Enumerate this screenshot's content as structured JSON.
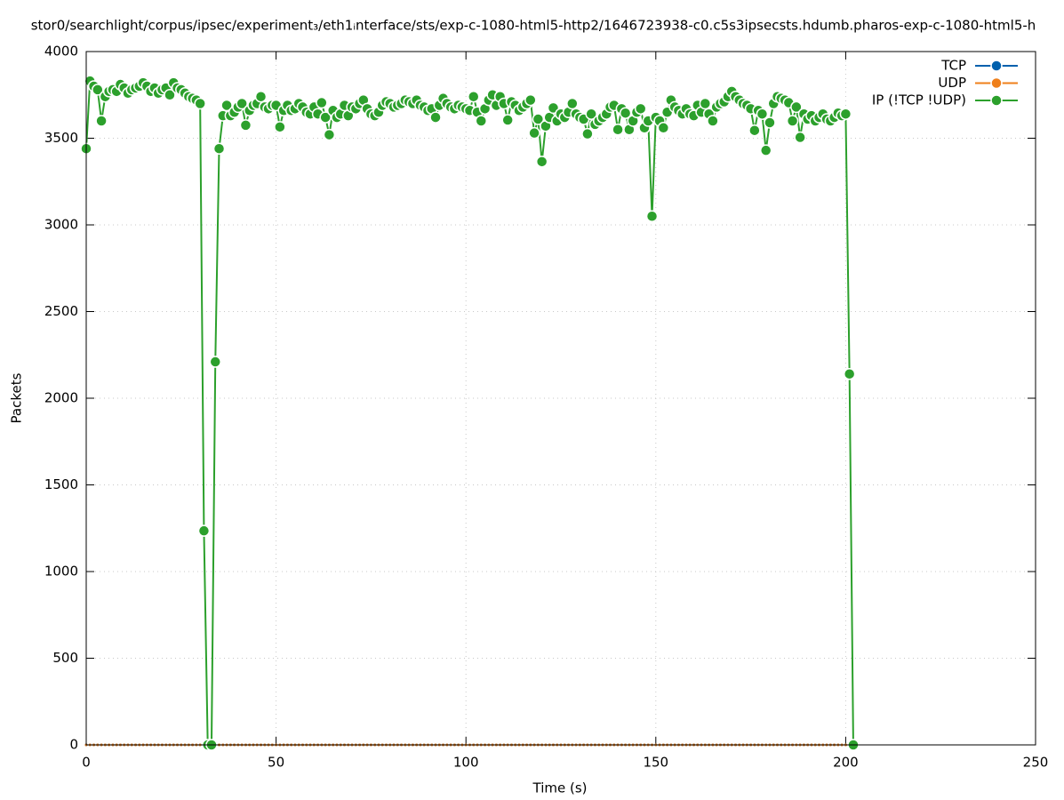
{
  "chart_data": {
    "type": "line",
    "title": "stor0/searchlight/corpus/ipsec/experiment₃/eth1ᵢnterface/sts/exp-c-1080-html5-http2/1646723938-c0.c5s3ipsecsts.hdumb.pharos-exp-c-1080-html5-h",
    "x_label": "Time (s)",
    "y_label": "Packets",
    "xlim": [
      0,
      250
    ],
    "xticks": [
      0,
      50,
      100,
      150,
      200,
      250
    ],
    "ylim": [
      0,
      4000
    ],
    "yticks": [
      0,
      500,
      1000,
      1500,
      2000,
      2500,
      3000,
      3500,
      4000
    ],
    "grid": true,
    "legend": "top-right",
    "x": [
      0,
      1,
      2,
      3,
      4,
      5,
      6,
      7,
      8,
      9,
      10,
      11,
      12,
      13,
      14,
      15,
      16,
      17,
      18,
      19,
      20,
      21,
      22,
      23,
      24,
      25,
      26,
      27,
      28,
      29,
      30,
      31,
      32,
      33,
      34,
      35,
      36,
      37,
      38,
      39,
      40,
      41,
      42,
      43,
      44,
      45,
      46,
      47,
      48,
      49,
      50,
      51,
      52,
      53,
      54,
      55,
      56,
      57,
      58,
      59,
      60,
      61,
      62,
      63,
      64,
      65,
      66,
      67,
      68,
      69,
      70,
      71,
      72,
      73,
      74,
      75,
      76,
      77,
      78,
      79,
      80,
      81,
      82,
      83,
      84,
      85,
      86,
      87,
      88,
      89,
      90,
      91,
      92,
      93,
      94,
      95,
      96,
      97,
      98,
      99,
      100,
      101,
      102,
      103,
      104,
      105,
      106,
      107,
      108,
      109,
      110,
      111,
      112,
      113,
      114,
      115,
      116,
      117,
      118,
      119,
      120,
      121,
      122,
      123,
      124,
      125,
      126,
      127,
      128,
      129,
      130,
      131,
      132,
      133,
      134,
      135,
      136,
      137,
      138,
      139,
      140,
      141,
      142,
      143,
      144,
      145,
      146,
      147,
      148,
      149,
      150,
      151,
      152,
      153,
      154,
      155,
      156,
      157,
      158,
      159,
      160,
      161,
      162,
      163,
      164,
      165,
      166,
      167,
      168,
      169,
      170,
      171,
      172,
      173,
      174,
      175,
      176,
      177,
      178,
      179,
      180,
      181,
      182,
      183,
      184,
      185,
      186,
      187,
      188,
      189,
      190,
      191,
      192,
      193,
      194,
      195,
      196,
      197,
      198,
      199,
      200,
      201,
      202
    ],
    "series": [
      {
        "name": "TCP",
        "color": "#0060ad",
        "values": [
          0,
          0,
          0,
          0,
          0,
          0,
          0,
          0,
          0,
          0,
          0,
          0,
          0,
          0,
          0,
          0,
          0,
          0,
          0,
          0,
          0,
          0,
          0,
          0,
          0,
          0,
          0,
          0,
          0,
          0,
          0,
          0,
          0,
          0,
          0,
          0,
          0,
          0,
          0,
          0,
          0,
          0,
          0,
          0,
          0,
          0,
          0,
          0,
          0,
          0,
          0,
          0,
          0,
          0,
          0,
          0,
          0,
          0,
          0,
          0,
          0,
          0,
          0,
          0,
          0,
          0,
          0,
          0,
          0,
          0,
          0,
          0,
          0,
          0,
          0,
          0,
          0,
          0,
          0,
          0,
          0,
          0,
          0,
          0,
          0,
          0,
          0,
          0,
          0,
          0,
          0,
          0,
          0,
          0,
          0,
          0,
          0,
          0,
          0,
          0,
          0,
          0,
          0,
          0,
          0,
          0,
          0,
          0,
          0,
          0,
          0,
          0,
          0,
          0,
          0,
          0,
          0,
          0,
          0,
          0,
          0,
          0,
          0,
          0,
          0,
          0,
          0,
          0,
          0,
          0,
          0,
          0,
          0,
          0,
          0,
          0,
          0,
          0,
          0,
          0,
          0,
          0,
          0,
          0,
          0,
          0,
          0,
          0,
          0,
          0,
          0,
          0,
          0,
          0,
          0,
          0,
          0,
          0,
          0,
          0,
          0,
          0,
          0,
          0,
          0,
          0,
          0,
          0,
          0,
          0,
          0,
          0,
          0,
          0,
          0,
          0,
          0,
          0,
          0,
          0,
          0,
          0,
          0,
          0,
          0,
          0,
          0,
          0,
          0,
          0,
          0,
          0,
          0,
          0,
          0,
          0,
          0,
          0,
          0,
          0,
          0,
          0,
          0
        ]
      },
      {
        "name": "UDP",
        "color": "#ef7f1a",
        "values": [
          0,
          0,
          0,
          0,
          0,
          0,
          0,
          0,
          0,
          0,
          0,
          0,
          0,
          0,
          0,
          0,
          0,
          0,
          0,
          0,
          0,
          0,
          0,
          0,
          0,
          0,
          0,
          0,
          0,
          0,
          0,
          0,
          0,
          0,
          0,
          0,
          0,
          0,
          0,
          0,
          0,
          0,
          0,
          0,
          0,
          0,
          0,
          0,
          0,
          0,
          0,
          0,
          0,
          0,
          0,
          0,
          0,
          0,
          0,
          0,
          0,
          0,
          0,
          0,
          0,
          0,
          0,
          0,
          0,
          0,
          0,
          0,
          0,
          0,
          0,
          0,
          0,
          0,
          0,
          0,
          0,
          0,
          0,
          0,
          0,
          0,
          0,
          0,
          0,
          0,
          0,
          0,
          0,
          0,
          0,
          0,
          0,
          0,
          0,
          0,
          0,
          0,
          0,
          0,
          0,
          0,
          0,
          0,
          0,
          0,
          0,
          0,
          0,
          0,
          0,
          0,
          0,
          0,
          0,
          0,
          0,
          0,
          0,
          0,
          0,
          0,
          0,
          0,
          0,
          0,
          0,
          0,
          0,
          0,
          0,
          0,
          0,
          0,
          0,
          0,
          0,
          0,
          0,
          0,
          0,
          0,
          0,
          0,
          0,
          0,
          0,
          0,
          0,
          0,
          0,
          0,
          0,
          0,
          0,
          0,
          0,
          0,
          0,
          0,
          0,
          0,
          0,
          0,
          0,
          0,
          0,
          0,
          0,
          0,
          0,
          0,
          0,
          0,
          0,
          0,
          0,
          0,
          0,
          0,
          0,
          0,
          0,
          0,
          0,
          0,
          0,
          0,
          0,
          0,
          0,
          0,
          0,
          0,
          0,
          0,
          0,
          0,
          0
        ]
      },
      {
        "name": "IP (!TCP  !UDP)",
        "color": "#2ca02c",
        "values": [
          3440,
          3830,
          3800,
          3780,
          3600,
          3740,
          3770,
          3780,
          3770,
          3810,
          3790,
          3760,
          3780,
          3790,
          3800,
          3820,
          3800,
          3770,
          3790,
          3760,
          3780,
          3790,
          3750,
          3820,
          3790,
          3780,
          3760,
          3740,
          3730,
          3720,
          3700,
          1235,
          0,
          0,
          2210,
          3440,
          3630,
          3690,
          3630,
          3650,
          3680,
          3700,
          3575,
          3660,
          3690,
          3700,
          3740,
          3680,
          3670,
          3690,
          3690,
          3565,
          3660,
          3690,
          3660,
          3670,
          3700,
          3680,
          3650,
          3640,
          3680,
          3640,
          3705,
          3620,
          3520,
          3660,
          3620,
          3640,
          3690,
          3630,
          3680,
          3670,
          3700,
          3720,
          3670,
          3640,
          3630,
          3650,
          3690,
          3710,
          3700,
          3680,
          3690,
          3700,
          3720,
          3710,
          3700,
          3720,
          3690,
          3680,
          3660,
          3670,
          3620,
          3690,
          3730,
          3700,
          3680,
          3670,
          3690,
          3680,
          3670,
          3660,
          3740,
          3650,
          3600,
          3670,
          3720,
          3750,
          3690,
          3740,
          3700,
          3605,
          3710,
          3690,
          3660,
          3680,
          3700,
          3720,
          3530,
          3610,
          3365,
          3570,
          3620,
          3675,
          3600,
          3640,
          3620,
          3650,
          3700,
          3640,
          3620,
          3610,
          3525,
          3640,
          3580,
          3600,
          3620,
          3640,
          3680,
          3690,
          3550,
          3670,
          3645,
          3550,
          3600,
          3650,
          3670,
          3560,
          3600,
          3050,
          3620,
          3600,
          3560,
          3650,
          3720,
          3680,
          3660,
          3640,
          3670,
          3640,
          3630,
          3690,
          3650,
          3700,
          3640,
          3600,
          3680,
          3700,
          3710,
          3740,
          3770,
          3740,
          3720,
          3700,
          3690,
          3670,
          3545,
          3660,
          3640,
          3430,
          3590,
          3700,
          3740,
          3730,
          3720,
          3705,
          3600,
          3680,
          3505,
          3640,
          3610,
          3630,
          3600,
          3620,
          3640,
          3610,
          3600,
          3620,
          3645,
          3630,
          3640,
          2140,
          0
        ]
      }
    ]
  }
}
